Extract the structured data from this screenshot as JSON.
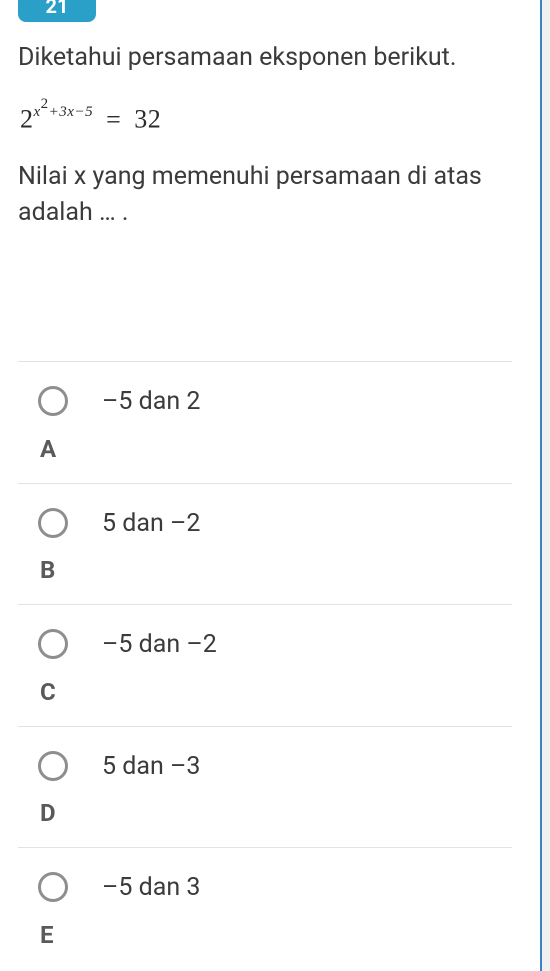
{
  "question_number": "21",
  "question": {
    "line1": "Diketahui persamaan eksponen berikut.",
    "equation_base": "2",
    "equation_exp_a": "x",
    "equation_exp_b": "2",
    "equation_exp_rest": "+3x−5",
    "equation_eq": "=",
    "equation_rhs": "32",
    "line2": "Nilai x yang memenuhi persamaan di atas adalah … ."
  },
  "options": [
    {
      "letter": "A",
      "text": "–5 dan 2"
    },
    {
      "letter": "B",
      "text": "5 dan –2"
    },
    {
      "letter": "C",
      "text": "–5 dan –2"
    },
    {
      "letter": "D",
      "text": "5 dan –3"
    },
    {
      "letter": "E",
      "text": "–5 dan 3"
    }
  ],
  "colors": {
    "badge_bg": "#2aa0c8",
    "text": "#3b3b3b",
    "letter": "#5a5a5a",
    "border": "#e3e3e3",
    "radio_border": "#8e8e8e",
    "scroll_accent": "#3b82c4"
  }
}
